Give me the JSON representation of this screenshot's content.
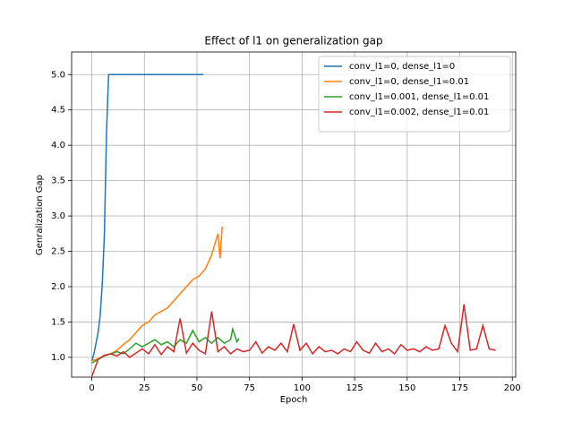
{
  "chart_data": {
    "type": "line",
    "title": "Effect of l1 on generalization gap",
    "x_label": "Epoch",
    "y_label": "Genralization Gap",
    "xlim": [
      -9.6,
      201.6
    ],
    "ylim": [
      0.72,
      5.32
    ],
    "xticks": [
      0,
      25,
      50,
      75,
      100,
      125,
      150,
      175,
      200
    ],
    "yticks": [
      {
        "value": 1,
        "label": "1.0"
      },
      1.5,
      {
        "value": 2,
        "label": "2.0"
      },
      2.5,
      {
        "value": 3,
        "label": "3.0"
      },
      3.5,
      {
        "value": 4,
        "label": "4.0"
      },
      4.5,
      {
        "value": 5,
        "label": "5.0"
      }
    ],
    "grid": true,
    "legend": "upper right",
    "series": [
      {
        "name": "conv_l1=0, dense_l1=0",
        "color": "#1f77b4",
        "x": [
          0,
          1,
          2,
          3,
          4,
          5,
          6,
          7,
          8,
          53
        ],
        "values": [
          0.95,
          1.05,
          1.2,
          1.35,
          1.6,
          2.05,
          2.75,
          4.2,
          5.0,
          5.0
        ]
      },
      {
        "name": "conv_l1=0, dense_l1=0.01",
        "color": "#ff7f0e",
        "x": [
          0,
          3,
          6,
          9,
          12,
          15,
          18,
          21,
          24,
          27,
          30,
          33,
          36,
          39,
          42,
          45,
          48,
          51,
          54,
          57,
          60,
          61,
          62
        ],
        "values": [
          0.95,
          0.98,
          1.02,
          1.05,
          1.1,
          1.18,
          1.25,
          1.35,
          1.45,
          1.5,
          1.6,
          1.65,
          1.7,
          1.8,
          1.9,
          2.0,
          2.1,
          2.15,
          2.25,
          2.45,
          2.75,
          2.4,
          2.85
        ]
      },
      {
        "name": "conv_l1=0.001, dense_l1=0.01",
        "color": "#2ca02c",
        "x": [
          0,
          3,
          6,
          9,
          12,
          15,
          18,
          21,
          24,
          27,
          30,
          33,
          36,
          39,
          42,
          45,
          48,
          51,
          54,
          57,
          60,
          63,
          66,
          67,
          69,
          70
        ],
        "values": [
          0.92,
          0.97,
          1.02,
          1.05,
          1.08,
          1.05,
          1.12,
          1.2,
          1.15,
          1.2,
          1.25,
          1.18,
          1.22,
          1.15,
          1.25,
          1.2,
          1.38,
          1.22,
          1.28,
          1.2,
          1.28,
          1.2,
          1.25,
          1.4,
          1.22,
          1.27
        ]
      },
      {
        "name": "conv_l1=0.002, dense_l1=0.01",
        "color": "#d62728",
        "x": [
          0,
          3,
          6,
          9,
          12,
          15,
          18,
          21,
          24,
          27,
          30,
          33,
          36,
          39,
          42,
          45,
          48,
          51,
          54,
          57,
          60,
          63,
          66,
          69,
          72,
          75,
          78,
          81,
          84,
          87,
          90,
          93,
          96,
          99,
          102,
          105,
          108,
          111,
          114,
          117,
          120,
          123,
          126,
          129,
          132,
          135,
          138,
          141,
          144,
          147,
          150,
          153,
          156,
          159,
          162,
          165,
          168,
          171,
          174,
          177,
          180,
          183,
          186,
          189,
          192
        ],
        "values": [
          0.73,
          0.97,
          1.03,
          1.05,
          1.02,
          1.08,
          1.0,
          1.06,
          1.12,
          1.05,
          1.18,
          1.04,
          1.15,
          1.08,
          1.55,
          1.06,
          1.2,
          1.1,
          1.05,
          1.65,
          1.08,
          1.15,
          1.05,
          1.12,
          1.08,
          1.1,
          1.22,
          1.06,
          1.15,
          1.1,
          1.2,
          1.08,
          1.47,
          1.1,
          1.2,
          1.05,
          1.15,
          1.08,
          1.1,
          1.05,
          1.12,
          1.08,
          1.22,
          1.1,
          1.06,
          1.2,
          1.08,
          1.12,
          1.05,
          1.18,
          1.1,
          1.12,
          1.08,
          1.15,
          1.1,
          1.12,
          1.45,
          1.2,
          1.08,
          1.75,
          1.1,
          1.12,
          1.45,
          1.12,
          1.1
        ]
      }
    ]
  }
}
